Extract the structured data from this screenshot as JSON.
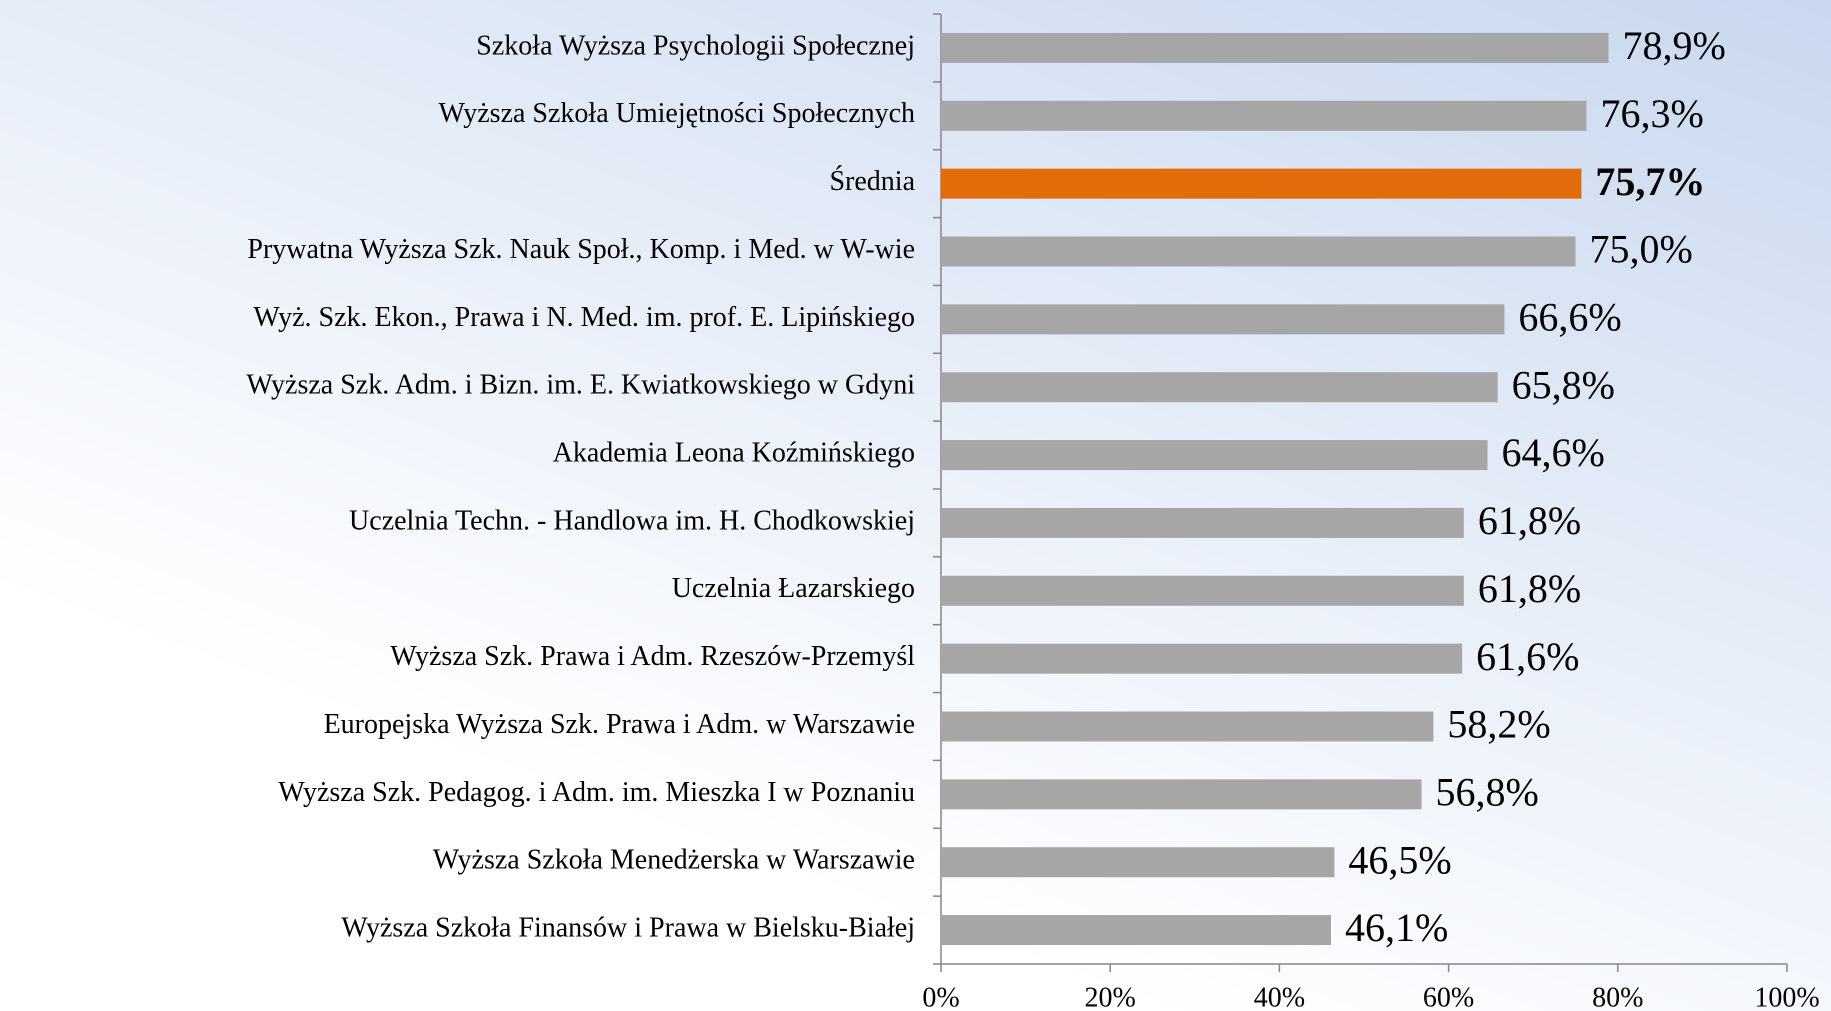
{
  "chart_data": {
    "type": "barh",
    "categories": [
      "Szkoła Wyższa Psychologii Społecznej",
      "Wyższa Szkoła Umiejętności Społecznych",
      "Średnia",
      "Prywatna Wyższa Szk. Nauk Społ., Komp. i Med. w W-wie",
      "Wyż. Szk. Ekon., Prawa i N. Med. im. prof. E. Lipińskiego",
      "Wyższa Szk. Adm. i Bizn. im. E. Kwiatkowskiego w Gdyni",
      "Akademia Leona Koźmińskiego",
      "Uczelnia Techn. - Handlowa im. H. Chodkowskiej",
      "Uczelnia Łazarskiego",
      "Wyższa Szk. Prawa i Adm. Rzeszów-Przemyśl",
      "Europejska Wyższa Szk. Prawa i Adm. w Warszawie",
      "Wyższa Szk. Pedagog. i Adm. im. Mieszka I w Poznaniu",
      "Wyższa Szkoła Menedżerska w Warszawie",
      "Wyższa Szkoła Finansów i Prawa w Bielsku-Białej"
    ],
    "values": [
      78.9,
      76.3,
      75.7,
      75.0,
      66.6,
      65.8,
      64.6,
      61.8,
      61.8,
      61.6,
      58.2,
      56.8,
      46.5,
      46.1
    ],
    "value_labels": [
      "78,9%",
      "76,3%",
      "75,7%",
      "75,0%",
      "66,6%",
      "65,8%",
      "64,6%",
      "61,8%",
      "61,8%",
      "61,6%",
      "58,2%",
      "56,8%",
      "46,5%",
      "46,1%"
    ],
    "color": "#a6a6a6",
    "colors": [
      "#a6a6a6",
      "#a6a6a6",
      "#e36c0a",
      "#a6a6a6",
      "#a6a6a6",
      "#a6a6a6",
      "#a6a6a6",
      "#a6a6a6",
      "#a6a6a6",
      "#a6a6a6",
      "#a6a6a6",
      "#a6a6a6",
      "#a6a6a6",
      "#a6a6a6"
    ],
    "xlim": [
      0,
      100
    ],
    "xticks": [
      {
        "value": 0,
        "label": "0%"
      },
      {
        "value": 20,
        "label": "20%"
      },
      {
        "value": 40,
        "label": "40%"
      },
      {
        "value": 60,
        "label": "60%"
      },
      {
        "value": 80,
        "label": "80%"
      },
      {
        "value": 100,
        "label": "100%"
      }
    ],
    "grid": false
  }
}
